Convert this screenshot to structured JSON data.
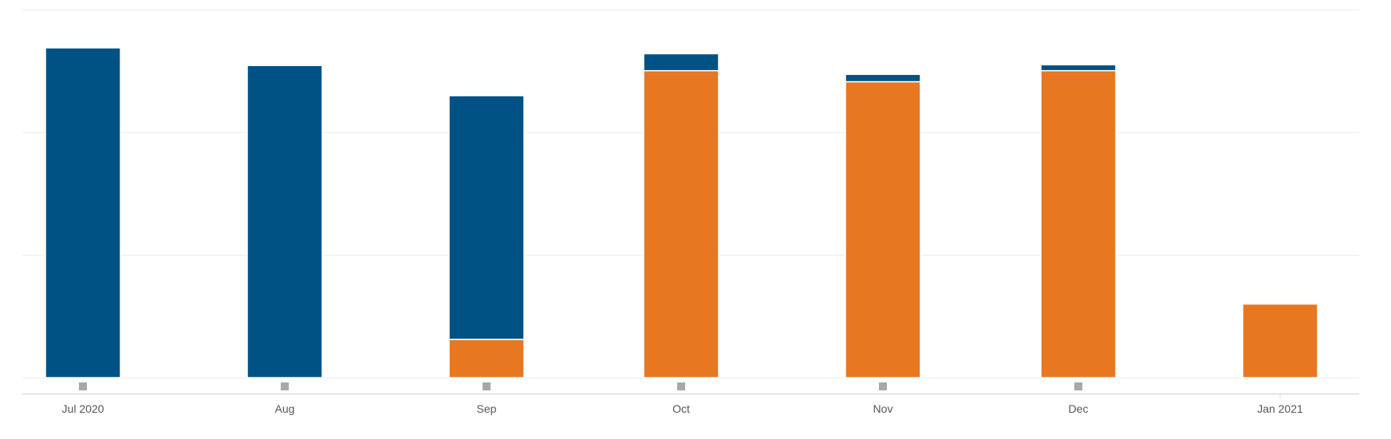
{
  "chart_data": {
    "type": "bar",
    "stacked": true,
    "categories": [
      "Jul 2020",
      "Aug",
      "Sep",
      "Oct",
      "Nov",
      "Dec",
      "Jan 2021"
    ],
    "series": [
      {
        "color": "#E87722",
        "values": [
          0,
          0,
          0.52,
          4.17,
          4.02,
          4.17,
          1.0
        ]
      },
      {
        "color": "#005285",
        "values": [
          4.48,
          4.24,
          3.31,
          0.23,
          0.1,
          0.08,
          0
        ]
      }
    ],
    "ylim": [
      0,
      5
    ],
    "grid": true,
    "legend": "none",
    "title": "",
    "xlabel": "",
    "ylabel": ""
  }
}
